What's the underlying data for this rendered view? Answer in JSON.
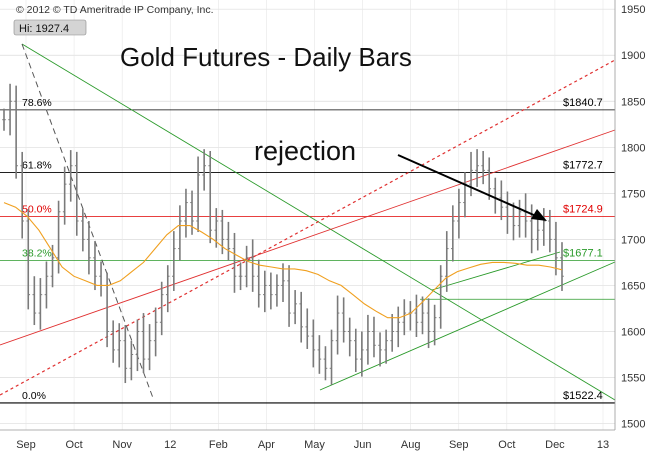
{
  "copyright": "© 2012 © TD Ameritrade IP Company, Inc.",
  "chart_data": {
    "type": "ohlc",
    "title": "Gold Futures - Daily Bars",
    "hi_label": "Hi: 1927.4",
    "annotation": "rejection",
    "x_ticks": [
      "Sep",
      "Oct",
      "Nov",
      "12",
      "Feb",
      "Apr",
      "May",
      "Jun",
      "Aug",
      "Sep",
      "Oct",
      "Dec",
      "13"
    ],
    "y_ticks": [
      1500,
      1550,
      1600,
      1650,
      1700,
      1750,
      1800,
      1850,
      1900,
      1950
    ],
    "ylim": [
      1493,
      1960
    ],
    "grid": true,
    "fib_levels": [
      {
        "pct": "78.6%",
        "value": 1840.7,
        "label": "$1840.7",
        "color": "#000000"
      },
      {
        "pct": "61.8%",
        "value": 1772.7,
        "label": "$1772.7",
        "color": "#000000"
      },
      {
        "pct": "50.0%",
        "value": 1724.9,
        "label": "$1724.9",
        "color": "#e00000"
      },
      {
        "pct": "38.2%",
        "value": 1677.1,
        "label": "$1677.1",
        "color": "#2a9a2a"
      },
      {
        "pct": "0.0%",
        "value": 1522.4,
        "label": "$1522.4",
        "color": "#000000"
      }
    ],
    "extra_levels": [
      1635
    ],
    "colors": {
      "bars": "#7a7a7a",
      "ma": "#f0a020",
      "fib_red": "#e00000",
      "fib_green": "#2a9a2a",
      "trend_green": "#2a9a2a",
      "trend_red": "#e03030"
    },
    "series": {
      "close": [
        1830,
        1850,
        1780,
        1720,
        1640,
        1620,
        1640,
        1660,
        1680,
        1730,
        1760,
        1780,
        1720,
        1700,
        1680,
        1660,
        1650,
        1600,
        1580,
        1590,
        1560,
        1575,
        1600,
        1570,
        1590,
        1610,
        1640,
        1660,
        1690,
        1720,
        1740,
        1720,
        1770,
        1780,
        1710,
        1720,
        1700,
        1690,
        1660,
        1660,
        1680,
        1660,
        1640,
        1650,
        1640,
        1650,
        1655,
        1620,
        1630,
        1605,
        1595,
        1580,
        1570,
        1560,
        1590,
        1620,
        1600,
        1590,
        1570,
        1580,
        1600,
        1585,
        1580,
        1590,
        1600,
        1610,
        1620,
        1620,
        1610,
        1620,
        1600,
        1615,
        1660,
        1690,
        1720,
        1740,
        1760,
        1775,
        1780,
        1775,
        1755,
        1745,
        1735,
        1725,
        1715,
        1730,
        1720,
        1700,
        1710,
        1720,
        1700,
        1680,
        1660
      ],
      "ma": [
        1740,
        1735,
        1725,
        1710,
        1690,
        1670,
        1660,
        1655,
        1650,
        1650,
        1655,
        1665,
        1675,
        1690,
        1705,
        1715,
        1715,
        1708,
        1700,
        1690,
        1683,
        1676,
        1672,
        1670,
        1668,
        1668,
        1666,
        1662,
        1655,
        1650,
        1640,
        1630,
        1622,
        1615,
        1615,
        1620,
        1632,
        1645,
        1658,
        1665,
        1669,
        1673,
        1675,
        1675,
        1674,
        1672,
        1672,
        1670,
        1667
      ]
    }
  }
}
